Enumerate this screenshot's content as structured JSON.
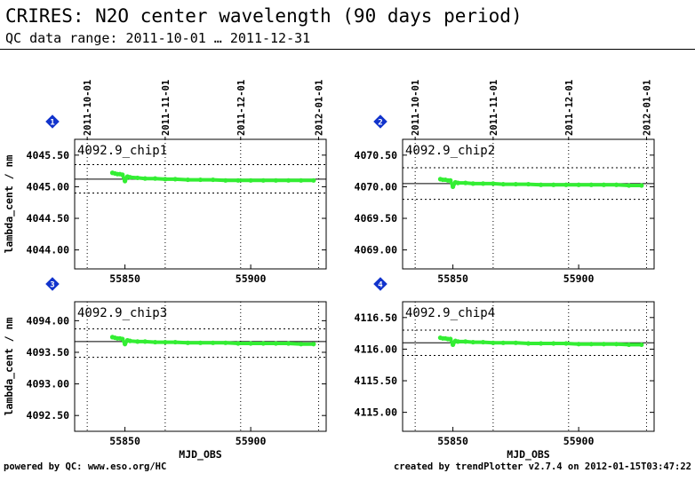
{
  "header": {
    "title": "CRIRES: N2O center wavelength (90 days period)",
    "subtitle": "QC data range: 2011-10-01 … 2011-12-31"
  },
  "footer": {
    "left": "powered by QC: www.eso.org/HC",
    "right": "created by trendPlotter v2.7.4 on 2012-01-15T03:47:22"
  },
  "colors": {
    "data": "#33ee33",
    "reference_line": "#000000",
    "index_badge": "#1133cc"
  },
  "chart_data": [
    {
      "type": "scatter",
      "index": "1",
      "label": "4092.9_chip1",
      "ylabel": "lambda_cent / nm",
      "xlabel": "",
      "xlim": [
        55830,
        55930
      ],
      "ylim": [
        4043.7,
        4045.75
      ],
      "yticks": [
        4044.0,
        4044.5,
        4045.0,
        4045.5
      ],
      "xticks": [
        55850,
        55900
      ],
      "date_ticks": [
        {
          "x": 55835,
          "label": "2011-10-01"
        },
        {
          "x": 55866,
          "label": "2011-11-01"
        },
        {
          "x": 55896,
          "label": "2011-12-01"
        },
        {
          "x": 55927,
          "label": "2012-01-01"
        }
      ],
      "reference": 4045.12,
      "band": [
        4044.9,
        4045.35
      ],
      "x": [
        55845,
        55846,
        55847,
        55848,
        55849,
        55850,
        55851,
        55852,
        55855,
        55858,
        55862,
        55866,
        55870,
        55875,
        55880,
        55885,
        55890,
        55895,
        55900,
        55905,
        55910,
        55915,
        55920,
        55925
      ],
      "y": [
        4045.22,
        4045.21,
        4045.2,
        4045.2,
        4045.19,
        4045.09,
        4045.16,
        4045.15,
        4045.14,
        4045.13,
        4045.13,
        4045.12,
        4045.12,
        4045.11,
        4045.11,
        4045.11,
        4045.1,
        4045.1,
        4045.1,
        4045.1,
        4045.1,
        4045.1,
        4045.1,
        4045.1
      ]
    },
    {
      "type": "scatter",
      "index": "2",
      "label": "4092.9_chip2",
      "ylabel": "",
      "xlabel": "",
      "xlim": [
        55830,
        55930
      ],
      "ylim": [
        4068.7,
        4070.75
      ],
      "yticks": [
        4069.0,
        4069.5,
        4070.0,
        4070.5
      ],
      "xticks": [
        55850,
        55900
      ],
      "date_ticks": [
        {
          "x": 55835,
          "label": "2011-10-01"
        },
        {
          "x": 55866,
          "label": "2011-11-01"
        },
        {
          "x": 55896,
          "label": "2011-12-01"
        },
        {
          "x": 55927,
          "label": "2012-01-01"
        }
      ],
      "reference": 4070.05,
      "band": [
        4069.8,
        4070.3
      ],
      "x": [
        55845,
        55846,
        55847,
        55848,
        55849,
        55850,
        55851,
        55852,
        55855,
        55858,
        55862,
        55866,
        55870,
        55875,
        55880,
        55885,
        55890,
        55895,
        55900,
        55905,
        55910,
        55915,
        55920,
        55925
      ],
      "y": [
        4070.12,
        4070.11,
        4070.11,
        4070.1,
        4070.1,
        4070.0,
        4070.07,
        4070.06,
        4070.06,
        4070.05,
        4070.05,
        4070.05,
        4070.04,
        4070.04,
        4070.04,
        4070.03,
        4070.03,
        4070.03,
        4070.03,
        4070.03,
        4070.03,
        4070.03,
        4070.02,
        4070.02
      ]
    },
    {
      "type": "scatter",
      "index": "3",
      "label": "4092.9_chip3",
      "ylabel": "lambda_cent / nm",
      "xlabel": "MJD_OBS",
      "xlim": [
        55830,
        55930
      ],
      "ylim": [
        4092.25,
        4094.3
      ],
      "yticks": [
        4092.5,
        4093.0,
        4093.5,
        4094.0
      ],
      "xticks": [
        55850,
        55900
      ],
      "date_ticks": [],
      "reference": 4093.67,
      "band": [
        4093.42,
        4093.87
      ],
      "x": [
        55845,
        55846,
        55847,
        55848,
        55849,
        55850,
        55851,
        55852,
        55855,
        55858,
        55862,
        55866,
        55870,
        55875,
        55880,
        55885,
        55890,
        55895,
        55900,
        55905,
        55910,
        55915,
        55920,
        55925
      ],
      "y": [
        4093.74,
        4093.73,
        4093.72,
        4093.72,
        4093.71,
        4093.63,
        4093.69,
        4093.68,
        4093.67,
        4093.67,
        4093.66,
        4093.66,
        4093.66,
        4093.65,
        4093.65,
        4093.65,
        4093.65,
        4093.64,
        4093.64,
        4093.64,
        4093.64,
        4093.64,
        4093.63,
        4093.63
      ]
    },
    {
      "type": "scatter",
      "index": "4",
      "label": "4092.9_chip4",
      "ylabel": "",
      "xlabel": "MJD_OBS",
      "xlim": [
        55830,
        55930
      ],
      "ylim": [
        4114.7,
        4116.75
      ],
      "yticks": [
        4115.0,
        4115.5,
        4116.0,
        4116.5
      ],
      "xticks": [
        55850,
        55900
      ],
      "date_ticks": [],
      "reference": 4116.1,
      "band": [
        4115.9,
        4116.3
      ],
      "x": [
        55845,
        55846,
        55847,
        55848,
        55849,
        55850,
        55851,
        55852,
        55855,
        55858,
        55862,
        55866,
        55870,
        55875,
        55880,
        55885,
        55890,
        55895,
        55900,
        55905,
        55910,
        55915,
        55920,
        55925
      ],
      "y": [
        4116.18,
        4116.17,
        4116.17,
        4116.16,
        4116.16,
        4116.07,
        4116.13,
        4116.12,
        4116.12,
        4116.11,
        4116.11,
        4116.1,
        4116.1,
        4116.1,
        4116.09,
        4116.09,
        4116.09,
        4116.09,
        4116.08,
        4116.08,
        4116.08,
        4116.08,
        4116.07,
        4116.07
      ]
    }
  ]
}
